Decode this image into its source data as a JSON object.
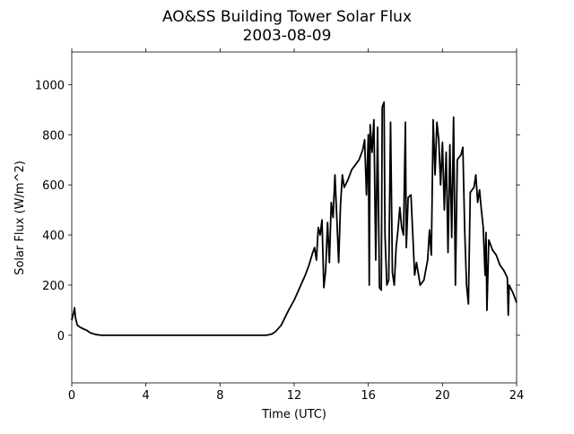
{
  "chart_data": {
    "type": "line",
    "title": "AO&SS Building Tower Solar Flux",
    "subtitle": "2003-08-09",
    "x_label": "Time (UTC)",
    "y_label": "Solar Flux (W/m^2)",
    "x": [
      0,
      0.1,
      0.15,
      0.2,
      0.3,
      0.5,
      0.8,
      1.0,
      1.3,
      1.6,
      10.5,
      10.8,
      11,
      11.3,
      11.5,
      11.7,
      12,
      12.3,
      12.6,
      12.8,
      13,
      13.1,
      13.2,
      13.3,
      13.4,
      13.5,
      13.6,
      13.7,
      13.8,
      13.9,
      14,
      14.1,
      14.2,
      14.3,
      14.4,
      14.5,
      14.6,
      14.7,
      14.9,
      15.1,
      15.3,
      15.5,
      15.7,
      15.8,
      15.9,
      16.0,
      16.05,
      16.1,
      16.2,
      16.3,
      16.4,
      16.5,
      16.6,
      16.7,
      16.75,
      16.85,
      16.9,
      17.0,
      17.1,
      17.2,
      17.3,
      17.4,
      17.5,
      17.6,
      17.7,
      17.8,
      17.9,
      18.0,
      18.05,
      18.15,
      18.3,
      18.4,
      18.5,
      18.6,
      18.8,
      19.0,
      19.2,
      19.3,
      19.4,
      19.5,
      19.6,
      19.7,
      19.8,
      19.9,
      20.0,
      20.1,
      20.2,
      20.3,
      20.4,
      20.5,
      20.6,
      20.7,
      20.8,
      21,
      21.1,
      21.2,
      21.3,
      21.4,
      21.5,
      21.6,
      21.7,
      21.8,
      21.9,
      22.0,
      22.1,
      22.2,
      22.3,
      22.35,
      22.4,
      22.5,
      22.7,
      22.9,
      23.1,
      23.3,
      23.5,
      23.55,
      23.6,
      23.8,
      24
    ],
    "series": [
      {
        "name": "Solar Flux",
        "color": "#000000",
        "values": [
          60,
          90,
          110,
          70,
          40,
          30,
          20,
          10,
          3,
          0,
          0,
          5,
          15,
          40,
          70,
          100,
          140,
          190,
          240,
          280,
          330,
          350,
          300,
          430,
          400,
          460,
          190,
          260,
          450,
          290,
          530,
          470,
          640,
          470,
          290,
          520,
          640,
          590,
          620,
          660,
          680,
          700,
          740,
          780,
          560,
          800,
          200,
          840,
          730,
          860,
          300,
          830,
          190,
          180,
          910,
          930,
          400,
          200,
          220,
          850,
          250,
          200,
          350,
          420,
          510,
          430,
          400,
          850,
          350,
          550,
          560,
          400,
          240,
          290,
          200,
          220,
          300,
          420,
          320,
          860,
          640,
          850,
          780,
          600,
          770,
          500,
          730,
          330,
          760,
          390,
          870,
          200,
          700,
          720,
          750,
          420,
          200,
          125,
          570,
          580,
          590,
          640,
          530,
          580,
          500,
          430,
          240,
          410,
          100,
          380,
          340,
          320,
          280,
          260,
          230,
          80,
          200,
          170,
          130
        ]
      }
    ],
    "xlim": [
      0,
      24
    ],
    "xticks": [
      0,
      4,
      8,
      12,
      16,
      20,
      24
    ],
    "ylim": [
      -190,
      1130
    ],
    "yticks": [
      0,
      200,
      400,
      600,
      800,
      1000
    ]
  }
}
